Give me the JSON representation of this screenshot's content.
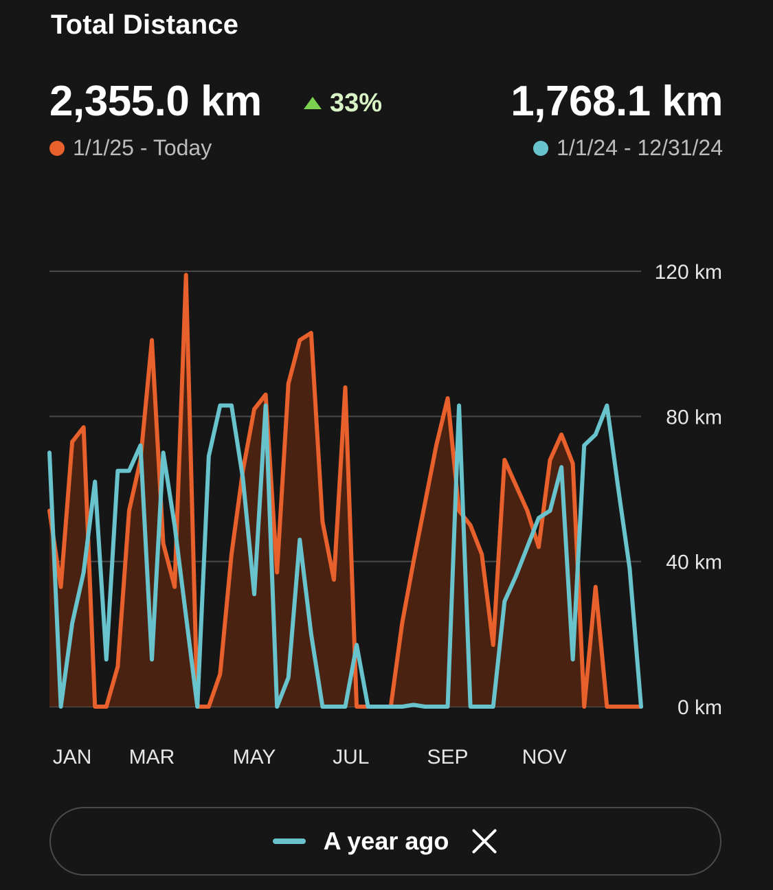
{
  "header": {
    "title": "Total Distance",
    "current_total": "2,355.0 km",
    "change_pct": "33%",
    "current_range": "1/1/25 - Today",
    "previous_total": "1,768.1 km",
    "previous_range": "1/1/24 - 12/31/24"
  },
  "colors": {
    "current": "#e8602c",
    "current_fill": "#4a2212",
    "previous": "#69c3cc",
    "change_up": "#7bd24e",
    "background": "#161616"
  },
  "legend_pill": {
    "label": "A year ago",
    "close_icon": "close-icon"
  },
  "chart_data": {
    "type": "area",
    "title": "Total Distance",
    "y_unit": "km",
    "ylim": [
      0,
      120
    ],
    "y_ticks": [
      "120 km",
      "80 km",
      "40 km",
      "0 km"
    ],
    "y_tick_values": [
      120,
      80,
      40,
      0
    ],
    "x_labels": [
      "JAN",
      "MAR",
      "MAY",
      "JUL",
      "SEP",
      "NOV"
    ],
    "x_label_weeks": [
      2,
      9,
      18,
      26.5,
      35,
      43.5
    ],
    "grid": true,
    "series": [
      {
        "name": "1/1/25 - Today",
        "style": "area",
        "values": [
          54,
          33,
          73,
          77,
          0,
          0,
          11,
          54,
          68,
          101,
          45,
          33,
          119,
          0,
          0,
          9,
          42,
          65,
          82,
          86,
          37,
          89,
          101,
          103,
          51,
          35,
          88,
          0,
          0,
          0,
          0,
          23,
          40,
          56,
          72,
          85,
          54,
          50,
          42,
          17,
          68,
          61,
          54,
          44,
          68,
          75,
          67,
          0,
          33,
          0,
          0,
          0,
          0
        ]
      },
      {
        "name": "1/1/24 - 12/31/24",
        "style": "line",
        "values": [
          70,
          0,
          23,
          37,
          62,
          13,
          65,
          65,
          72,
          13,
          70,
          50,
          25,
          0,
          69,
          83,
          83,
          63,
          31,
          83,
          0,
          8,
          46,
          20,
          0,
          0,
          0,
          17,
          0,
          0,
          0,
          0,
          0.5,
          0,
          0,
          0,
          83,
          0,
          0,
          0,
          29,
          36,
          44,
          52,
          54,
          66,
          13,
          72,
          75,
          83,
          60,
          38,
          0
        ]
      }
    ]
  }
}
